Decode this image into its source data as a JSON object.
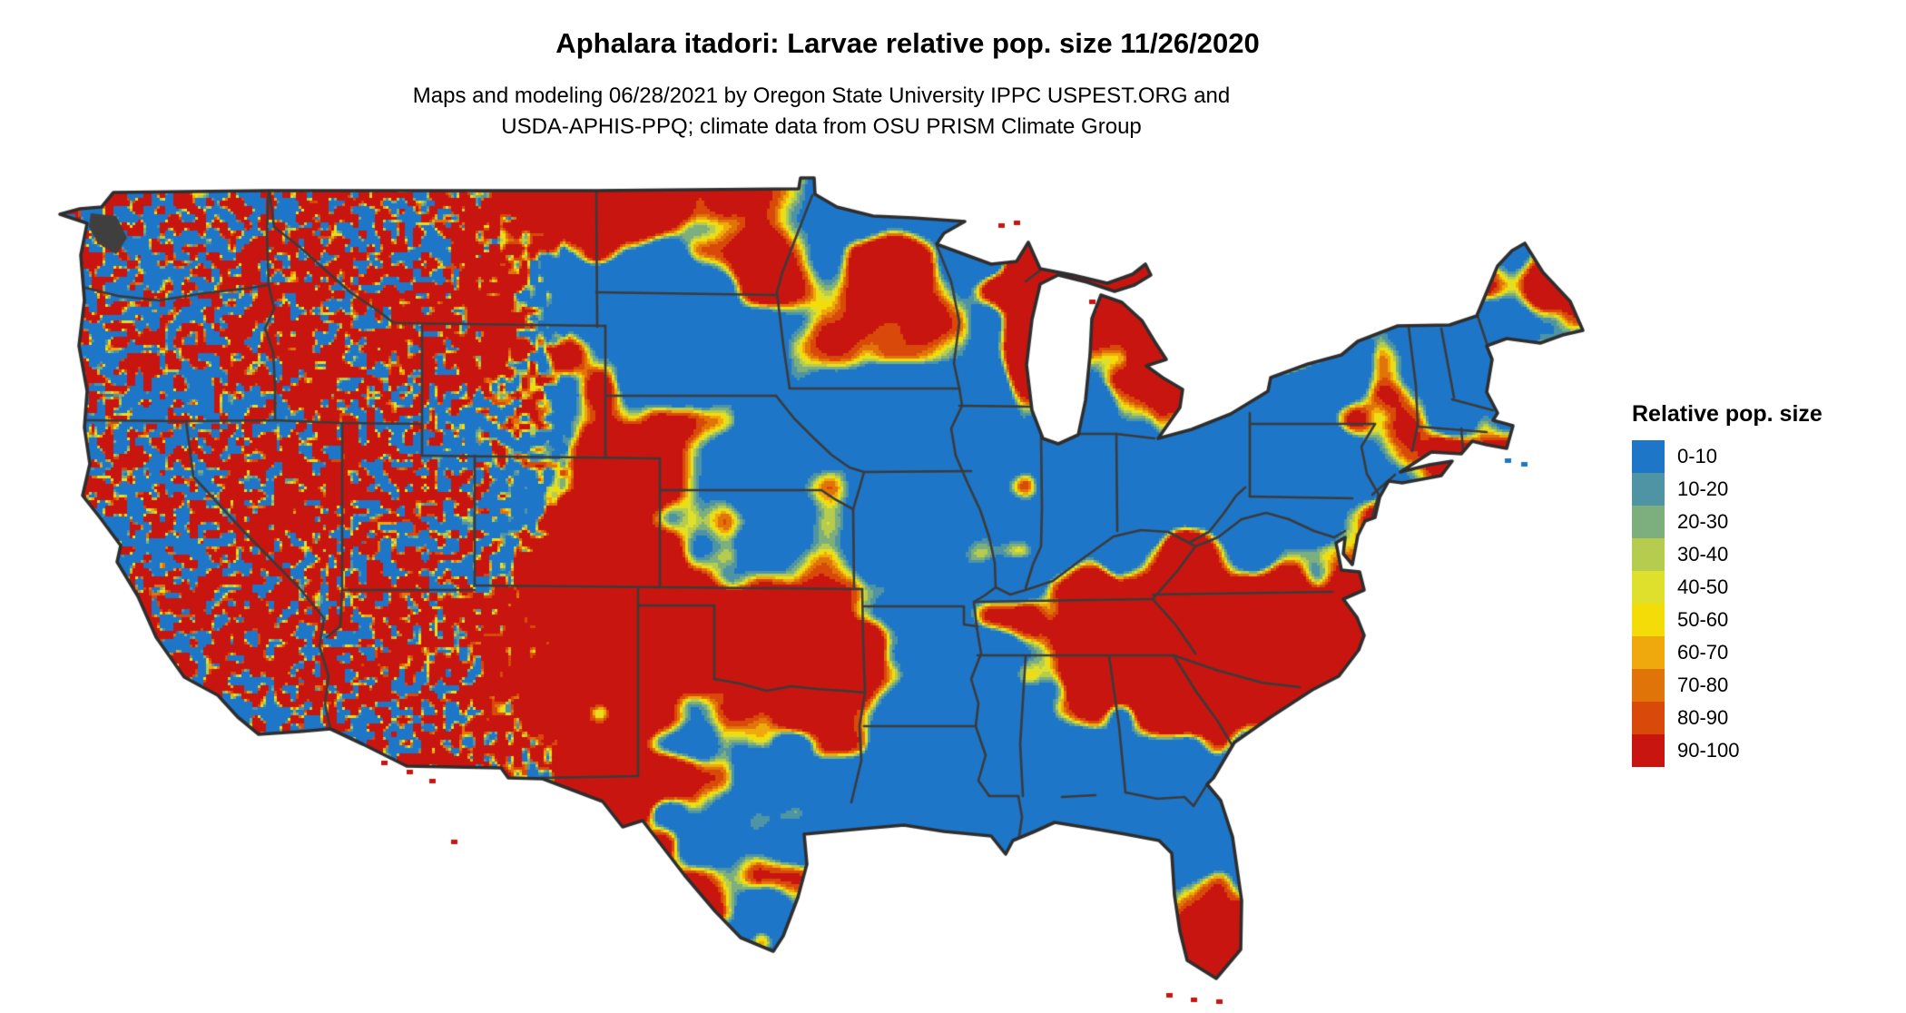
{
  "header": {
    "title": "Aphalara itadori: Larvae relative pop. size 11/26/2020",
    "subtitle_line1": "Maps and modeling 06/28/2021 by Oregon State University IPPC USPEST.ORG and",
    "subtitle_line2": "USDA-APHIS-PPQ; climate data from OSU PRISM Climate Group"
  },
  "legend": {
    "title": "Relative pop. size",
    "items": [
      {
        "label": "0-10",
        "color": "#1D76C8"
      },
      {
        "label": "10-20",
        "color": "#4E94A5"
      },
      {
        "label": "20-30",
        "color": "#7CAE7E"
      },
      {
        "label": "30-40",
        "color": "#B5CC4E"
      },
      {
        "label": "40-50",
        "color": "#DFE02B"
      },
      {
        "label": "50-60",
        "color": "#F4DC09"
      },
      {
        "label": "60-70",
        "color": "#EFA90C"
      },
      {
        "label": "70-80",
        "color": "#E17409"
      },
      {
        "label": "80-90",
        "color": "#D8490A"
      },
      {
        "label": "90-100",
        "color": "#C9150F"
      }
    ]
  },
  "map": {
    "region": "Contiguous United States",
    "colors": {
      "state_border": "#3B3B3B",
      "coast_outline": "#2E2E2E",
      "inland_water": "#3F3F3F",
      "background": "#FFFFFF"
    }
  }
}
